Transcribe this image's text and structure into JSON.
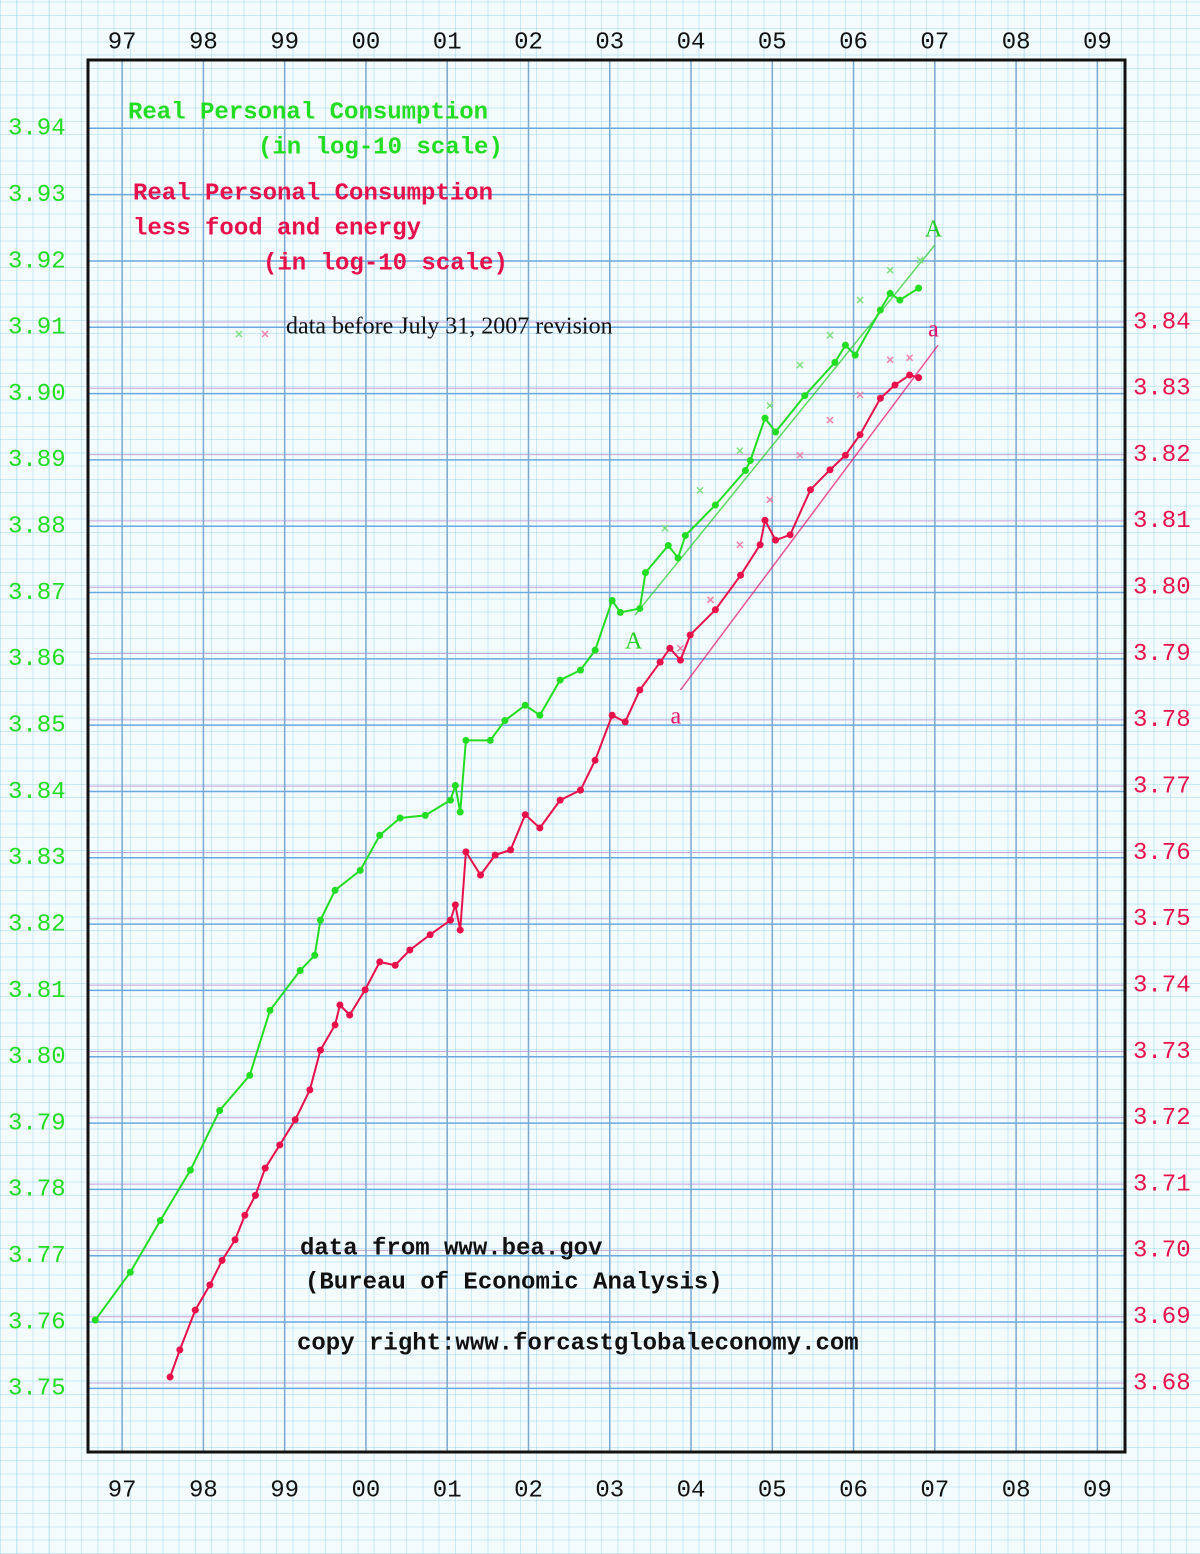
{
  "chart_data": {
    "type": "line",
    "title_blocks": [
      {
        "color": "#22dd22",
        "lines": [
          "Real Personal Consumption",
          "(in log-10 scale)"
        ]
      },
      {
        "color": "#e8104a",
        "lines": [
          "Real Personal Consumption",
          "less food and energy",
          "(in log-10 scale)"
        ]
      }
    ],
    "source": [
      "data from www.bea.gov",
      "(Bureau of Economic Analysis)",
      "copy right:www.forcastglobaleconomy.com"
    ],
    "xlim": [
      1996.58,
      2009.34
    ],
    "xticks": [
      {
        "value": 1997,
        "label": "97"
      },
      {
        "value": 1998,
        "label": "98"
      },
      {
        "value": 1999,
        "label": "99"
      },
      {
        "value": 2000,
        "label": "00"
      },
      {
        "value": 2001,
        "label": "01"
      },
      {
        "value": 2002,
        "label": "02"
      },
      {
        "value": 2003,
        "label": "03"
      },
      {
        "value": 2004,
        "label": "04"
      },
      {
        "value": 2005,
        "label": "05"
      },
      {
        "value": 2006,
        "label": "06"
      },
      {
        "value": 2007,
        "label": "07"
      },
      {
        "value": 2008,
        "label": "08"
      },
      {
        "value": 2009,
        "label": "09"
      }
    ],
    "ylim": [
      3.7404,
      3.9503
    ],
    "yticks": [
      3.75,
      3.76,
      3.77,
      3.78,
      3.79,
      {
        "value": 3.8,
        "label": "3.80"
      },
      3.81,
      3.82,
      3.83,
      3.84,
      3.85,
      3.86,
      3.87,
      3.88,
      3.89,
      {
        "value": 3.9,
        "label": "3.90"
      },
      3.91,
      3.92,
      3.93,
      3.94
    ],
    "y2lim": [
      3.6696,
      3.8795
    ],
    "y2ticks": [
      3.68,
      3.69,
      {
        "value": 3.7,
        "label": "3.70"
      },
      3.71,
      3.72,
      3.73,
      3.74,
      3.75,
      3.76,
      3.77,
      3.78,
      3.79,
      {
        "value": 3.8,
        "label": "3.80"
      },
      3.81,
      3.82,
      3.83,
      3.84
    ],
    "grid": true,
    "series": [
      {
        "color": "#22dd22",
        "axis": "y",
        "x": [
          1996.67,
          1997.1,
          1997.47,
          1997.84,
          1998.2,
          1998.57,
          1998.82,
          1999.19,
          1999.37,
          1999.44,
          1999.62,
          1999.93,
          2000.17,
          2000.42,
          2000.73,
          2001.04,
          2001.1,
          2001.16,
          2001.23,
          2001.53,
          2001.71,
          2001.96,
          2002.14,
          2002.39,
          2002.64,
          2002.82,
          2003.03,
          2003.13,
          2003.37,
          2003.44,
          2003.72,
          2003.84,
          2003.93,
          2004.3,
          2004.67,
          2004.73,
          2004.91,
          2005.04,
          2005.4,
          2005.77,
          2005.9,
          2006.02,
          2006.33,
          2006.45,
          2006.57,
          2006.8
        ],
        "values": [
          3.7603,
          3.7675,
          3.7753,
          3.7829,
          3.7919,
          3.7972,
          3.807,
          3.813,
          3.8153,
          3.8206,
          3.8251,
          3.8281,
          3.8334,
          3.836,
          3.8364,
          3.8387,
          3.8409,
          3.8369,
          3.8477,
          3.8477,
          3.8507,
          3.853,
          3.8515,
          3.8568,
          3.8583,
          3.8613,
          3.8688,
          3.867,
          3.8676,
          3.873,
          3.8771,
          3.8752,
          3.8786,
          3.8832,
          3.8884,
          3.8899,
          3.8963,
          3.8942,
          3.8997,
          3.9047,
          3.9073,
          3.9058,
          3.9126,
          3.9151,
          3.9141,
          3.9159
        ]
      },
      {
        "color": "#e8104a",
        "axis": "y2",
        "x": [
          1997.59,
          1997.71,
          1997.9,
          1998.08,
          1998.23,
          1998.39,
          1998.51,
          1998.64,
          1998.76,
          1998.94,
          1999.13,
          1999.31,
          1999.44,
          1999.62,
          1999.68,
          1999.8,
          1999.99,
          2000.17,
          2000.36,
          2000.54,
          2000.79,
          2001.04,
          2001.1,
          2001.16,
          2001.23,
          2001.41,
          2001.59,
          2001.78,
          2001.96,
          2002.14,
          2002.39,
          2002.64,
          2002.82,
          2003.03,
          2003.19,
          2003.37,
          2003.62,
          2003.74,
          2003.87,
          2003.99,
          2004.3,
          2004.61,
          2004.85,
          2004.91,
          2005.04,
          2005.22,
          2005.47,
          2005.71,
          2005.9,
          2006.08,
          2006.33,
          2006.51,
          2006.69,
          2006.8
        ],
        "values": [
          3.6809,
          3.685,
          3.691,
          3.6948,
          3.6985,
          3.7016,
          3.7053,
          3.7083,
          3.7124,
          3.7159,
          3.7197,
          3.7242,
          3.7302,
          3.734,
          3.737,
          3.7355,
          3.7393,
          3.7435,
          3.743,
          3.7453,
          3.7476,
          3.7498,
          3.7521,
          3.7483,
          3.7601,
          3.7566,
          3.7596,
          3.7604,
          3.7657,
          3.7637,
          3.7679,
          3.7694,
          3.7739,
          3.7807,
          3.7797,
          3.7845,
          3.7887,
          3.7908,
          3.789,
          3.7928,
          3.7966,
          3.8018,
          3.8064,
          3.8101,
          3.8071,
          3.8079,
          3.8147,
          3.8177,
          3.8199,
          3.823,
          3.8285,
          3.8305,
          3.832,
          3.8316
        ]
      }
    ],
    "old_data": {
      "label": "data before July 31, 2007 revision",
      "series": [
        {
          "color": "#7ee07e",
          "axis": "y",
          "x": [
            2003.68,
            2004.11,
            2004.6,
            2004.97,
            2005.34,
            2005.71,
            2006.08,
            2006.45,
            2006.82
          ],
          "values": [
            3.8797,
            3.8854,
            3.8914,
            3.8982,
            3.9043,
            3.9088,
            3.9141,
            3.9186,
            3.9201
          ]
        },
        {
          "color": "#f080a8",
          "axis": "y2",
          "x": [
            2003.87,
            2004.24,
            2004.6,
            2004.97,
            2005.34,
            2005.71,
            2006.08,
            2006.45,
            2006.69
          ],
          "values": [
            3.7908,
            3.7981,
            3.8064,
            3.8132,
            3.8199,
            3.8252,
            3.829,
            3.8343,
            3.8346
          ]
        }
      ]
    },
    "trend_lines": [
      {
        "label": "A",
        "color": "#22cc22",
        "axis": "y",
        "x": [
          2003.31,
          2007.0
        ],
        "values": [
          3.8666,
          3.9224
        ]
      },
      {
        "label": "a",
        "color": "#e8106a",
        "axis": "y2",
        "x": [
          2003.87,
          2007.04
        ],
        "values": [
          3.7845,
          3.8365
        ]
      }
    ]
  }
}
